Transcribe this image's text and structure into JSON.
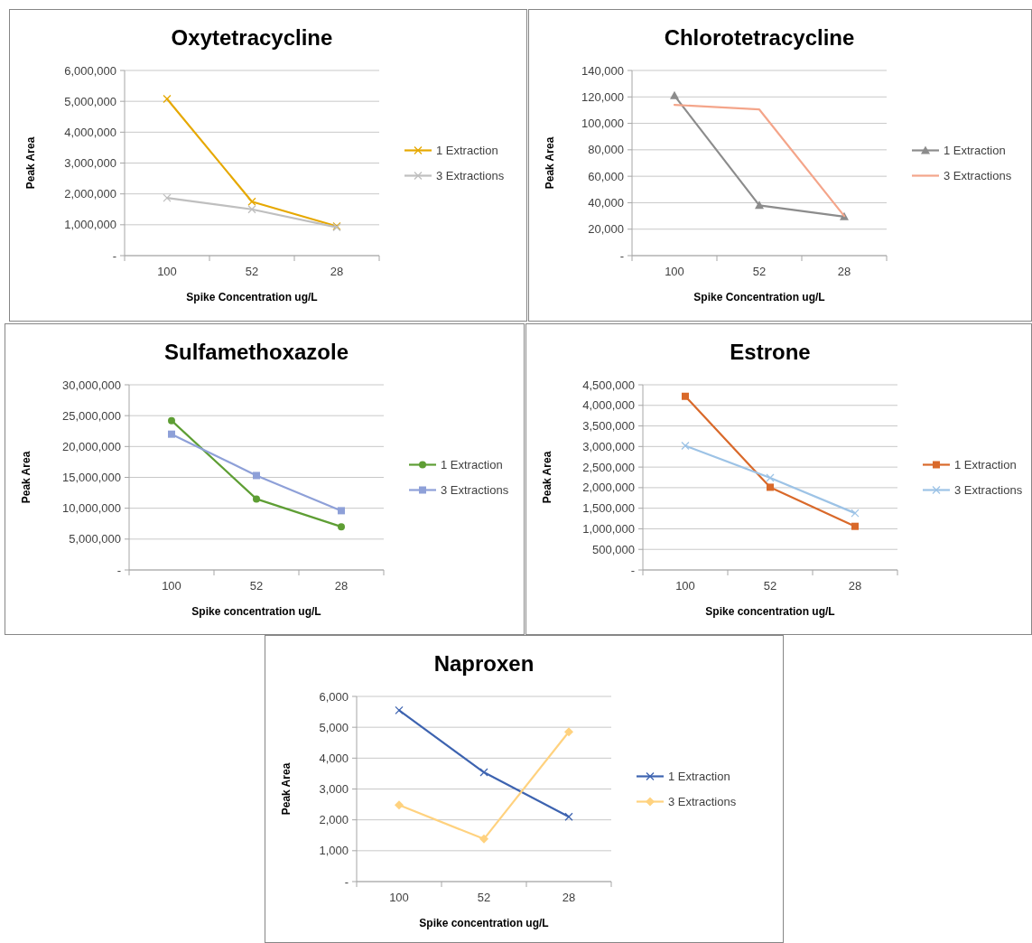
{
  "chart_data": [
    {
      "type": "line",
      "title": "Oxytetracycline",
      "xlabel": "Spike Concentration ug/L",
      "ylabel": "Peak Area",
      "categories": [
        "100",
        "52",
        "28"
      ],
      "ylim": [
        0,
        6000000
      ],
      "yticks": [
        {
          "value": 0,
          "label": "-"
        },
        {
          "value": 1000000,
          "label": "1,000,000"
        },
        {
          "value": 2000000,
          "label": "2,000,000"
        },
        {
          "value": 3000000,
          "label": "3,000,000"
        },
        {
          "value": 4000000,
          "label": "4,000,000"
        },
        {
          "value": 5000000,
          "label": "5,000,000"
        },
        {
          "value": 6000000,
          "label": "6,000,000"
        }
      ],
      "grid": "y",
      "legend": "right",
      "series": [
        {
          "name": "1 Extraction",
          "color": "#e6a800",
          "marker": "cross",
          "values": [
            5080000,
            1750000,
            950000
          ]
        },
        {
          "name": "3 Extractions",
          "color": "#bfbfbf",
          "marker": "cross",
          "values": [
            1870000,
            1500000,
            920000
          ]
        }
      ]
    },
    {
      "type": "line",
      "title": "Chlorotetracycline",
      "xlabel": "Spike Concentration ug/L",
      "ylabel": "Peak Area",
      "categories": [
        "100",
        "52",
        "28"
      ],
      "ylim": [
        0,
        140000
      ],
      "yticks": [
        {
          "value": 0,
          "label": "-"
        },
        {
          "value": 20000,
          "label": "20,000"
        },
        {
          "value": 40000,
          "label": "40,000"
        },
        {
          "value": 60000,
          "label": "60,000"
        },
        {
          "value": 80000,
          "label": "80,000"
        },
        {
          "value": 100000,
          "label": "100,000"
        },
        {
          "value": 120000,
          "label": "120,000"
        },
        {
          "value": 140000,
          "label": "140,000"
        }
      ],
      "grid": "y",
      "legend": "right",
      "series": [
        {
          "name": "1 Extraction",
          "color": "#8c8c8c",
          "marker": "triangle",
          "values": [
            121000,
            38000,
            29500
          ]
        },
        {
          "name": "3 Extractions",
          "color": "#f4a58a",
          "marker": "none",
          "values": [
            114000,
            110500,
            30000
          ]
        }
      ]
    },
    {
      "type": "line",
      "title": "Sulfamethoxazole",
      "xlabel": "Spike concentration ug/L",
      "ylabel": "Peak Area",
      "categories": [
        "100",
        "52",
        "28"
      ],
      "ylim": [
        0,
        30000000
      ],
      "yticks": [
        {
          "value": 0,
          "label": "-"
        },
        {
          "value": 5000000,
          "label": "5,000,000"
        },
        {
          "value": 10000000,
          "label": "10,000,000"
        },
        {
          "value": 15000000,
          "label": "15,000,000"
        },
        {
          "value": 20000000,
          "label": "20,000,000"
        },
        {
          "value": 25000000,
          "label": "25,000,000"
        },
        {
          "value": 30000000,
          "label": "30,000,000"
        }
      ],
      "grid": "y",
      "legend": "right",
      "series": [
        {
          "name": "1 Extraction",
          "color": "#5e9e34",
          "marker": "circle",
          "values": [
            24200000,
            11500000,
            7000000
          ]
        },
        {
          "name": "3 Extractions",
          "color": "#8ea0d8",
          "marker": "square",
          "values": [
            22000000,
            15300000,
            9600000
          ]
        }
      ]
    },
    {
      "type": "line",
      "title": "Estrone",
      "xlabel": "Spike concentration ug/L",
      "ylabel": "Peak Area",
      "categories": [
        "100",
        "52",
        "28"
      ],
      "ylim": [
        0,
        4500000
      ],
      "yticks": [
        {
          "value": 0,
          "label": "-"
        },
        {
          "value": 500000,
          "label": "500,000"
        },
        {
          "value": 1000000,
          "label": "1,000,000"
        },
        {
          "value": 1500000,
          "label": "1,500,000"
        },
        {
          "value": 2000000,
          "label": "2,000,000"
        },
        {
          "value": 2500000,
          "label": "2,500,000"
        },
        {
          "value": 3000000,
          "label": "3,000,000"
        },
        {
          "value": 3500000,
          "label": "3,500,000"
        },
        {
          "value": 4000000,
          "label": "4,000,000"
        },
        {
          "value": 4500000,
          "label": "4,500,000"
        }
      ],
      "grid": "y",
      "legend": "right",
      "series": [
        {
          "name": "1 Extraction",
          "color": "#d9692a",
          "marker": "square",
          "values": [
            4220000,
            2010000,
            1060000
          ]
        },
        {
          "name": "3 Extractions",
          "color": "#9dc3e6",
          "marker": "cross",
          "values": [
            3020000,
            2240000,
            1380000
          ]
        }
      ]
    },
    {
      "type": "line",
      "title": "Naproxen",
      "xlabel": "Spike concentration ug/L",
      "ylabel": "Peak Area",
      "categories": [
        "100",
        "52",
        "28"
      ],
      "ylim": [
        0,
        6000
      ],
      "yticks": [
        {
          "value": 0,
          "label": "-"
        },
        {
          "value": 1000,
          "label": "1,000"
        },
        {
          "value": 2000,
          "label": "2,000"
        },
        {
          "value": 3000,
          "label": "3,000"
        },
        {
          "value": 4000,
          "label": "4,000"
        },
        {
          "value": 5000,
          "label": "5,000"
        },
        {
          "value": 6000,
          "label": "6,000"
        }
      ],
      "grid": "y",
      "legend": "right",
      "series": [
        {
          "name": "1 Extraction",
          "color": "#3d63b0",
          "marker": "cross",
          "values": [
            5550,
            3540,
            2100
          ]
        },
        {
          "name": "3 Extractions",
          "color": "#ffd27f",
          "marker": "diamond",
          "values": [
            2480,
            1380,
            4850
          ]
        }
      ]
    }
  ]
}
